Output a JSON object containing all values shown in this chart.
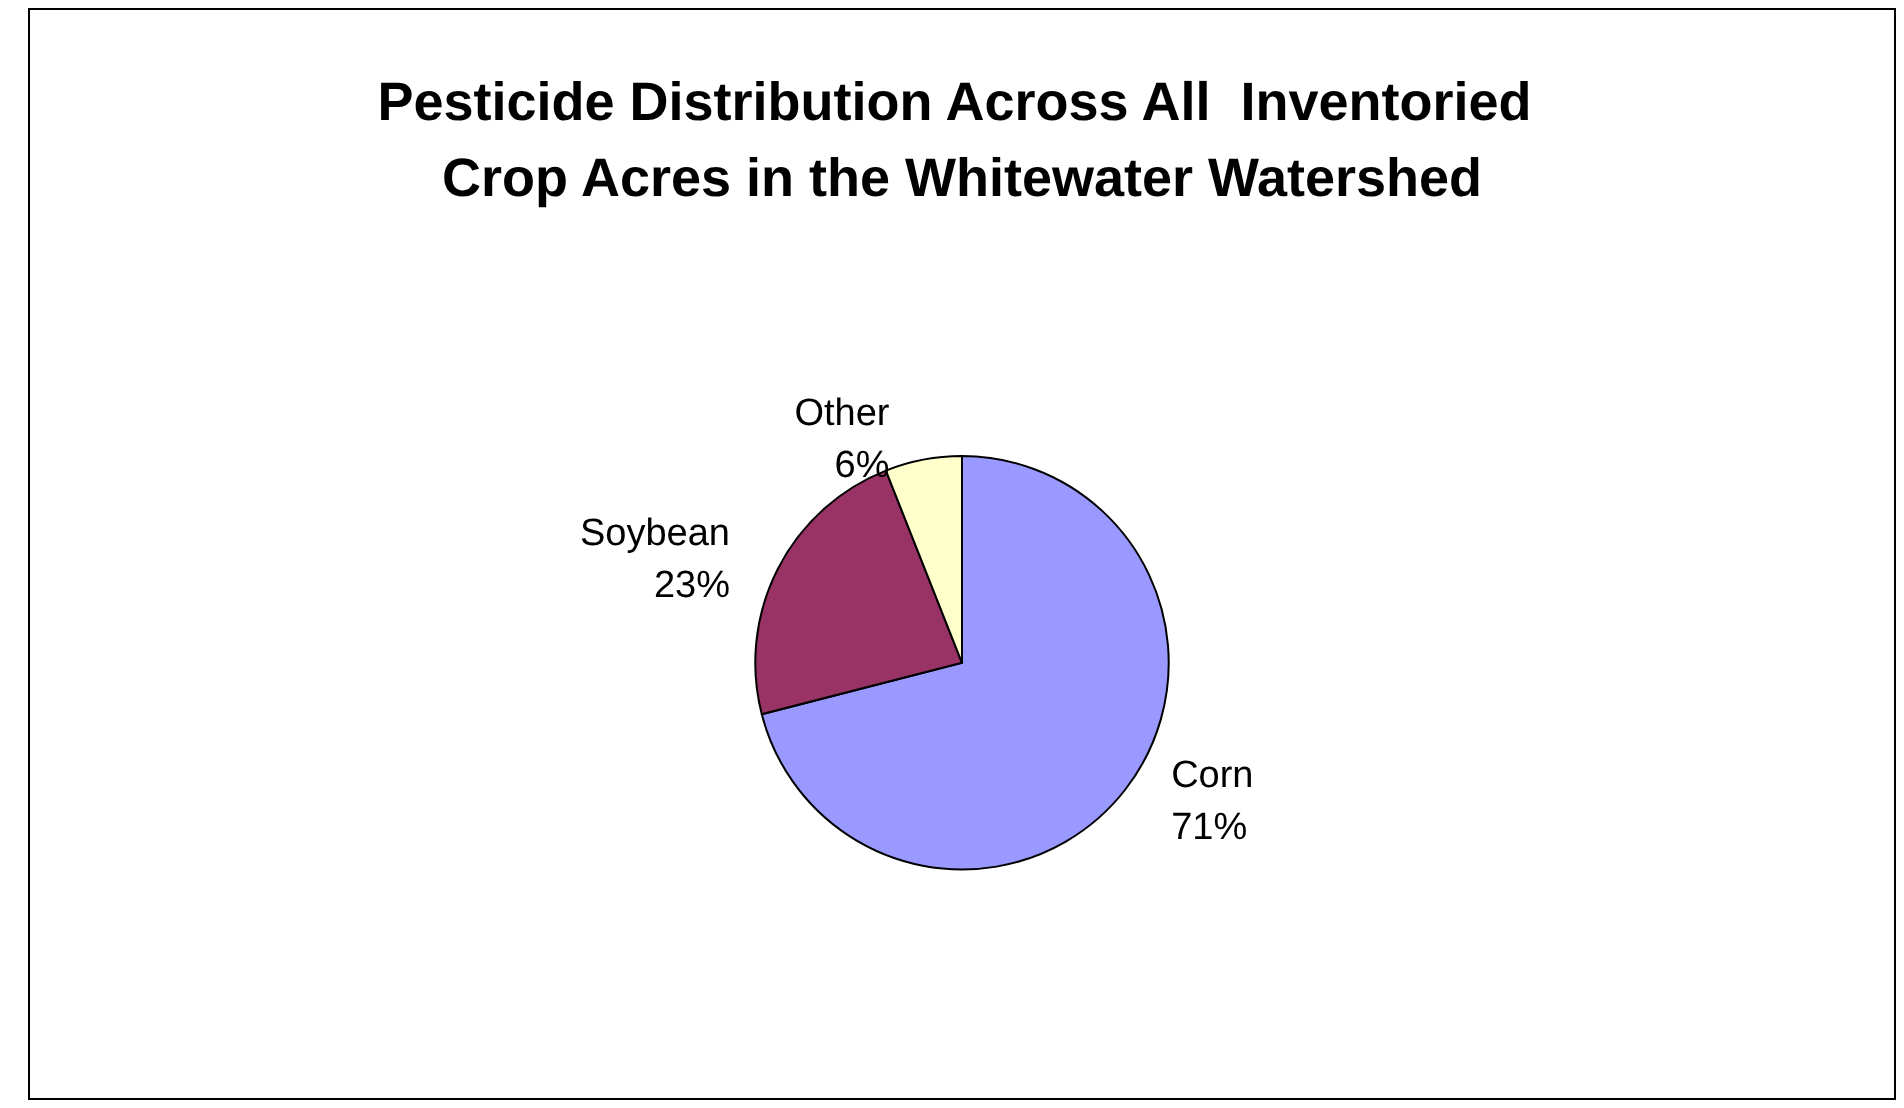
{
  "chart_data": {
    "type": "pie",
    "title": "Pesticide Distribution Across All  Inventoried Crop Acres in the Whitewater Watershed",
    "categories": [
      "Corn",
      "Soybean",
      "Other"
    ],
    "values": [
      71,
      23,
      6
    ],
    "colors": [
      "#9999ff",
      "#993366",
      "#ffffcc"
    ],
    "value_labels": [
      "71%",
      "23%",
      "6%"
    ],
    "legend": false
  }
}
